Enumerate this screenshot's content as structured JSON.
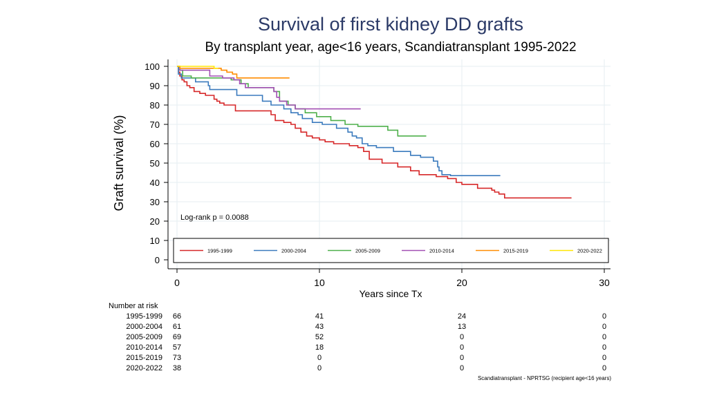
{
  "chart_data": {
    "type": "line",
    "title": "Survival of first kidney DD grafts",
    "subtitle": "By transplant year, age<16 years, Scandiatransplant 1995-2022",
    "xlabel": "Years since Tx",
    "ylabel": "Graft survival (%)",
    "xlim": [
      0,
      30
    ],
    "ylim": [
      0,
      100
    ],
    "x_ticks": [
      0,
      10,
      20,
      30
    ],
    "y_ticks": [
      0,
      10,
      20,
      30,
      40,
      50,
      60,
      70,
      80,
      90,
      100
    ],
    "grid": true,
    "annotation": "Log-rank p = 0.0088",
    "legend_position": "bottom-inside",
    "series": [
      {
        "name": "1995-1999",
        "color": "#d62728",
        "steps": [
          [
            0,
            100
          ],
          [
            0.1,
            97
          ],
          [
            0.2,
            95
          ],
          [
            0.35,
            93
          ],
          [
            0.5,
            92
          ],
          [
            0.7,
            90
          ],
          [
            0.9,
            89
          ],
          [
            1.2,
            87
          ],
          [
            1.6,
            86
          ],
          [
            2.0,
            85
          ],
          [
            2.6,
            83
          ],
          [
            2.8,
            82
          ],
          [
            3.0,
            81
          ],
          [
            3.3,
            80
          ],
          [
            4.1,
            77
          ],
          [
            5.0,
            77
          ],
          [
            5.5,
            77
          ],
          [
            6.6,
            75
          ],
          [
            6.9,
            72
          ],
          [
            7.5,
            71
          ],
          [
            8.0,
            70
          ],
          [
            8.3,
            68
          ],
          [
            8.7,
            66
          ],
          [
            9.1,
            64
          ],
          [
            9.5,
            63
          ],
          [
            10.0,
            62
          ],
          [
            10.4,
            61
          ],
          [
            11.0,
            60
          ],
          [
            12.1,
            59
          ],
          [
            12.7,
            58
          ],
          [
            13.1,
            56
          ],
          [
            13.5,
            52
          ],
          [
            14.4,
            50
          ],
          [
            15.5,
            48
          ],
          [
            16.4,
            46
          ],
          [
            17.0,
            44
          ],
          [
            18.2,
            43
          ],
          [
            19.0,
            42
          ],
          [
            19.6,
            40
          ],
          [
            20.0,
            39
          ],
          [
            21.1,
            37
          ],
          [
            22.1,
            36
          ],
          [
            22.3,
            35
          ],
          [
            22.6,
            34
          ],
          [
            23.0,
            32
          ]
        ],
        "end_x": 27.7
      },
      {
        "name": "2000-2004",
        "color": "#3a7abd",
        "steps": [
          [
            0,
            100
          ],
          [
            0.1,
            96
          ],
          [
            0.3,
            94
          ],
          [
            1.3,
            92
          ],
          [
            2.2,
            90
          ],
          [
            2.3,
            88
          ],
          [
            4.0,
            88
          ],
          [
            4.2,
            85
          ],
          [
            6.0,
            82
          ],
          [
            6.6,
            80
          ],
          [
            7.5,
            78
          ],
          [
            8.0,
            76
          ],
          [
            8.5,
            75
          ],
          [
            8.8,
            73
          ],
          [
            9.5,
            71
          ],
          [
            10.2,
            70
          ],
          [
            11.2,
            68
          ],
          [
            12.0,
            66
          ],
          [
            12.3,
            64
          ],
          [
            12.6,
            63
          ],
          [
            13.0,
            60
          ],
          [
            13.4,
            59
          ],
          [
            14.0,
            58
          ],
          [
            15.2,
            56
          ],
          [
            16.4,
            54
          ],
          [
            17.1,
            53
          ],
          [
            18.0,
            51
          ],
          [
            18.3,
            48
          ],
          [
            18.4,
            46
          ],
          [
            18.6,
            44
          ],
          [
            18.8,
            44
          ],
          [
            19.2,
            43.5
          ]
        ],
        "end_x": 22.7
      },
      {
        "name": "2005-2009",
        "color": "#4daf4a",
        "steps": [
          [
            0,
            100
          ],
          [
            0.2,
            98
          ],
          [
            0.4,
            95
          ],
          [
            1.0,
            94
          ],
          [
            3.0,
            94
          ],
          [
            3.8,
            93
          ],
          [
            4.5,
            91
          ],
          [
            5.0,
            89
          ],
          [
            6.8,
            87
          ],
          [
            7.2,
            82
          ],
          [
            7.8,
            80
          ],
          [
            8.3,
            78
          ],
          [
            9.0,
            76
          ],
          [
            9.8,
            74
          ],
          [
            10.8,
            72
          ],
          [
            11.8,
            70
          ],
          [
            12.7,
            69
          ],
          [
            14.8,
            67
          ],
          [
            15.5,
            64
          ]
        ],
        "end_x": 17.5
      },
      {
        "name": "2010-2014",
        "color": "#a14fb3",
        "steps": [
          [
            0,
            100
          ],
          [
            0.2,
            98
          ],
          [
            2.3,
            95
          ],
          [
            3.2,
            94
          ],
          [
            4.0,
            93
          ],
          [
            4.4,
            91
          ],
          [
            4.8,
            89
          ],
          [
            6.8,
            87
          ],
          [
            7.0,
            84
          ],
          [
            7.2,
            82
          ],
          [
            7.7,
            80
          ],
          [
            8.3,
            78
          ]
        ],
        "end_x": 12.9
      },
      {
        "name": "2015-2019",
        "color": "#ff8c00",
        "steps": [
          [
            0,
            100
          ],
          [
            0.2,
            99
          ],
          [
            2.4,
            99
          ],
          [
            3.1,
            98
          ],
          [
            3.5,
            97
          ],
          [
            3.9,
            96
          ],
          [
            4.2,
            94
          ]
        ],
        "end_x": 7.9
      },
      {
        "name": "2020-2022",
        "color": "#ffe600",
        "steps": [
          [
            0,
            100
          ],
          [
            2.5,
            100
          ],
          [
            2.6,
            99
          ]
        ],
        "end_x": 2.9
      }
    ],
    "number_at_risk": {
      "heading": "Number at risk",
      "time_points": [
        0,
        10,
        20,
        30
      ],
      "rows": [
        {
          "label": "1995-1999",
          "values": [
            "66",
            "41",
            "24",
            "0"
          ]
        },
        {
          "label": "2000-2004",
          "values": [
            "61",
            "43",
            "13",
            "0"
          ]
        },
        {
          "label": "2005-2009",
          "values": [
            "69",
            "52",
            "0",
            "0"
          ]
        },
        {
          "label": "2010-2014",
          "values": [
            "57",
            "18",
            "0",
            "0"
          ]
        },
        {
          "label": "2015-2019",
          "values": [
            "73",
            "0",
            "0",
            "0"
          ]
        },
        {
          "label": "2020-2022",
          "values": [
            "38",
            "0",
            "0",
            "0"
          ]
        }
      ]
    }
  },
  "source_note": "Scandiatransplant - NPRTSG (recipient age<16 years)"
}
